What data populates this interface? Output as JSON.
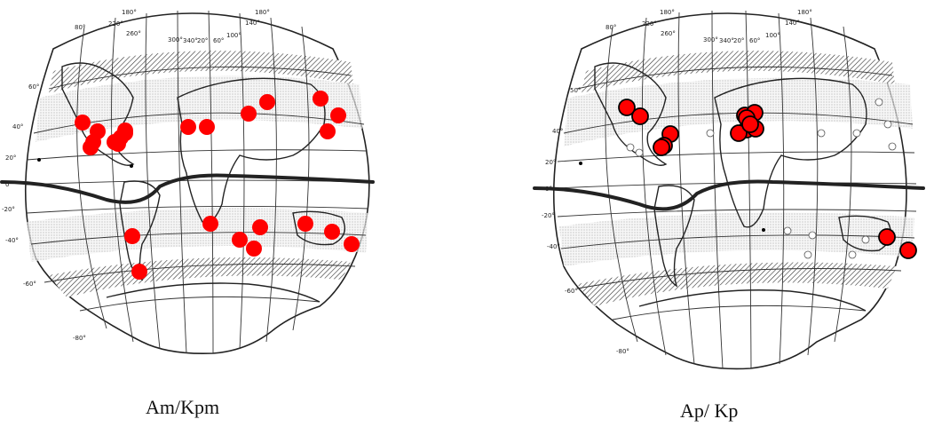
{
  "colors": {
    "station_marker": "#ff0000",
    "station_stroke_right": "#000000",
    "equator_line": "#222222"
  },
  "maps": [
    {
      "id": "left",
      "caption": "Am/Kpm",
      "lon_labels": [
        "80°",
        "180°",
        "220°",
        "260°",
        "300°",
        "340°",
        "20°",
        "60°",
        "100°",
        "140°",
        "180°"
      ],
      "lat_labels": [
        "60°",
        "40°",
        "20°",
        "0°",
        "-20°",
        "-40°",
        "-60°",
        "-80°"
      ],
      "stations_count": 25
    },
    {
      "id": "right",
      "caption": "Ap/ Kp",
      "lon_labels": [
        "80°",
        "180°",
        "220°",
        "260°",
        "300°",
        "340°",
        "20°",
        "60°",
        "100°",
        "140°",
        "180°"
      ],
      "lat_labels": [
        "50°",
        "40°",
        "20°",
        "0°",
        "-20°",
        "-40°",
        "-60°",
        "-80°"
      ],
      "stations_count": 14
    }
  ]
}
